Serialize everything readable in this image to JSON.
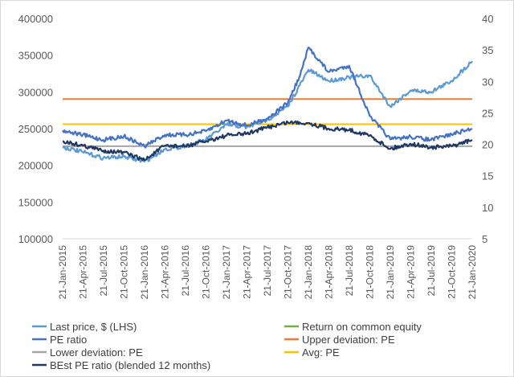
{
  "chart_data": {
    "type": "line",
    "title": "",
    "x_ticks": [
      "21-Jan-2015",
      "21-Apr-2015",
      "21-Jul-2015",
      "21-Oct-2015",
      "21-Jan-2016",
      "21-Apr-2016",
      "21-Jul-2016",
      "21-Oct-2016",
      "21-Jan-2017",
      "21-Apr-2017",
      "21-Jul-2017",
      "21-Oct-2017",
      "21-Jan-2018",
      "21-Apr-2018",
      "21-Jul-2018",
      "21-Oct-2018",
      "21-Jan-2019",
      "21-Apr-2019",
      "21-Jul-2019",
      "21-Oct-2019",
      "21-Jan-2020"
    ],
    "y_left": {
      "ticks": [
        100000,
        150000,
        200000,
        250000,
        300000,
        350000,
        400000
      ],
      "ylim": [
        100000,
        400000
      ]
    },
    "y_right": {
      "ticks": [
        5,
        10,
        15,
        20,
        25,
        30,
        35,
        40
      ],
      "ylim": [
        5,
        40
      ]
    },
    "grid": false,
    "legend_position": "bottom",
    "series": [
      {
        "name": "Last price, $ (LHS)",
        "axis": "left",
        "color": "#5b9bd5",
        "x": [
          "2015-01-21",
          "2015-04-21",
          "2015-07-21",
          "2015-10-21",
          "2016-01-21",
          "2016-04-21",
          "2016-07-21",
          "2016-10-21",
          "2017-01-21",
          "2017-04-21",
          "2017-07-21",
          "2017-10-21",
          "2018-01-21",
          "2018-04-21",
          "2018-07-21",
          "2018-10-21",
          "2019-01-21",
          "2019-04-21",
          "2019-07-21",
          "2019-10-21",
          "2020-01-21"
        ],
        "y": [
          225000,
          218000,
          210000,
          212000,
          205000,
          222000,
          226000,
          235000,
          255000,
          252000,
          262000,
          280000,
          330000,
          315000,
          320000,
          322000,
          280000,
          302000,
          300000,
          315000,
          342000
        ]
      },
      {
        "name": "Return on common equity",
        "axis": "right",
        "color": "#70ad47",
        "x": [],
        "y": []
      },
      {
        "name": "PE ratio",
        "axis": "right",
        "color": "#4472c4",
        "x": [
          "2015-01-21",
          "2015-04-21",
          "2015-07-21",
          "2015-10-21",
          "2016-01-21",
          "2016-04-21",
          "2016-07-21",
          "2016-10-21",
          "2017-01-21",
          "2017-04-21",
          "2017-07-21",
          "2017-10-21",
          "2017-12-15",
          "2018-01-21",
          "2018-04-21",
          "2018-07-21",
          "2018-10-21",
          "2019-01-21",
          "2019-04-21",
          "2019-07-21",
          "2019-10-21",
          "2020-01-21"
        ],
        "y": [
          22.2,
          21.5,
          20.7,
          21.3,
          19.7,
          21.5,
          21.5,
          22.1,
          23.8,
          23.0,
          24.1,
          26.6,
          31.0,
          35.4,
          31.5,
          32.5,
          24.5,
          20.8,
          21.2,
          20.7,
          21.6,
          22.5
        ]
      },
      {
        "name": "Upper deviation: PE",
        "axis": "right",
        "color": "#ed7d31",
        "x": [
          "2015-01-21",
          "2020-01-21"
        ],
        "y": [
          27.2,
          27.2
        ]
      },
      {
        "name": "Lower deviation: PE",
        "axis": "right",
        "color": "#a5a5a5",
        "x": [
          "2015-01-21",
          "2020-01-21"
        ],
        "y": [
          19.7,
          19.7
        ]
      },
      {
        "name": "Avg: PE",
        "axis": "right",
        "color": "#ffc000",
        "x": [
          "2015-01-21",
          "2020-01-21"
        ],
        "y": [
          23.2,
          23.2
        ]
      },
      {
        "name": "BEst PE ratio (blended 12 months)",
        "axis": "right",
        "color": "#203864",
        "x": [
          "2015-01-21",
          "2015-04-21",
          "2015-07-21",
          "2015-10-21",
          "2016-01-21",
          "2016-04-21",
          "2016-07-21",
          "2016-10-21",
          "2017-01-21",
          "2017-04-21",
          "2017-07-21",
          "2017-10-21",
          "2018-01-21",
          "2018-04-21",
          "2018-07-21",
          "2018-10-21",
          "2019-01-21",
          "2019-04-21",
          "2019-07-21",
          "2019-10-21",
          "2020-01-21"
        ],
        "y": [
          20.5,
          19.8,
          19.0,
          18.7,
          17.5,
          19.8,
          19.7,
          20.5,
          21.4,
          21.7,
          22.7,
          23.5,
          23.4,
          22.5,
          22.3,
          21.4,
          19.3,
          20.1,
          19.5,
          19.7,
          20.7
        ]
      }
    ]
  }
}
